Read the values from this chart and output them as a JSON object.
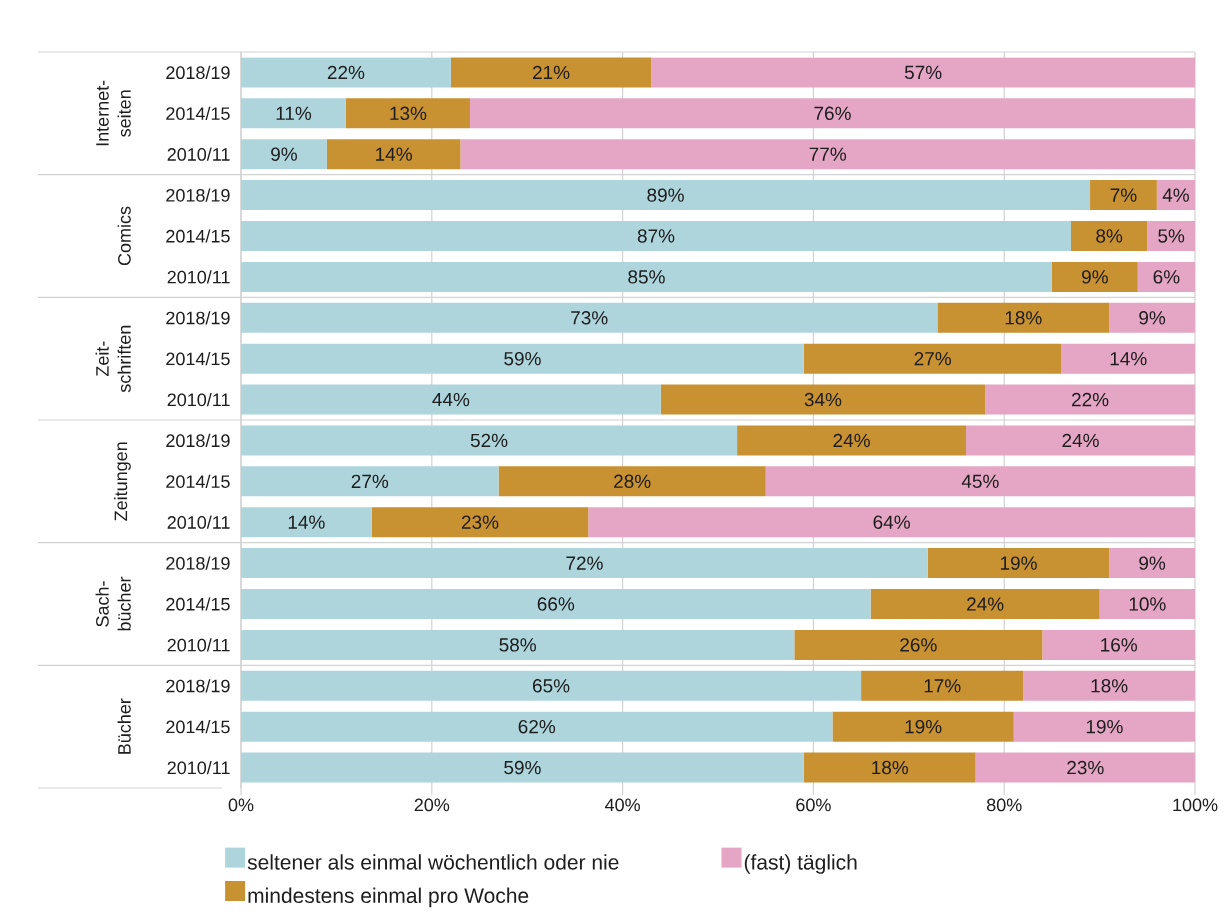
{
  "chart_data": {
    "type": "bar",
    "orientation": "horizontal",
    "stacked": true,
    "categories": [
      "2018/19",
      "2014/15",
      "2010/11",
      "2018/19",
      "2014/15",
      "2010/11",
      "2018/19",
      "2014/15",
      "2010/11",
      "2018/19",
      "2014/15",
      "2010/11",
      "2018/19",
      "2014/15",
      "2010/11",
      "2018/19",
      "2014/15",
      "2010/11"
    ],
    "series": [
      {
        "name": "seltener als einmal wöchentlich oder nie",
        "color": "#aed5dc",
        "values": [
          22,
          11,
          9,
          89,
          87,
          85,
          73,
          59,
          44,
          52,
          27,
          13.7,
          72,
          66,
          58,
          65,
          62,
          59
        ],
        "value_labels": [
          "22%",
          "11%",
          "9%",
          "89%",
          "87%",
          "85%",
          "73%",
          "59%",
          "44%",
          "52%",
          "27%",
          "14%",
          "72%",
          "66%",
          "58%",
          "65%",
          "62%",
          "59%"
        ]
      },
      {
        "name": "mindestens einmal pro Woche",
        "color": "#c89131",
        "values": [
          21,
          13,
          14,
          7,
          8,
          9,
          18,
          27,
          34,
          24,
          28,
          22.7,
          19,
          24,
          26,
          17,
          19,
          18
        ],
        "value_labels": [
          "21%",
          "13%",
          "14%",
          "7%",
          "8%",
          "9%",
          "18%",
          "27%",
          "34%",
          "24%",
          "28%",
          "23%",
          "19%",
          "24%",
          "26%",
          "17%",
          "19%",
          "18%"
        ]
      },
      {
        "name": "(fast) täglich",
        "color": "#e4a6c4",
        "values": [
          57,
          76,
          77,
          4,
          5,
          6,
          9,
          14,
          22,
          24,
          45,
          63.6,
          9,
          10,
          16,
          18,
          19,
          23
        ],
        "value_labels": [
          "57%",
          "76%",
          "77%",
          "4%",
          "5%",
          "6%",
          "9%",
          "14%",
          "22%",
          "24%",
          "45%",
          "64%",
          "9%",
          "10%",
          "16%",
          "18%",
          "19%",
          "23%"
        ]
      }
    ],
    "xlim": [
      0,
      100
    ],
    "xticks": [
      {
        "value": 0,
        "label": "0%"
      },
      {
        "value": 20,
        "label": "20%"
      },
      {
        "value": 40,
        "label": "40%"
      },
      {
        "value": 60,
        "label": "60%"
      },
      {
        "value": 80,
        "label": "80%"
      },
      {
        "value": 100,
        "label": "100%"
      }
    ],
    "grid": "x",
    "legend": "bottom",
    "annotations": [
      "Internet-seiten",
      "Comics",
      "Zeit-schriften",
      "Zeitungen",
      "Sach-bücher",
      "Bücher"
    ]
  }
}
